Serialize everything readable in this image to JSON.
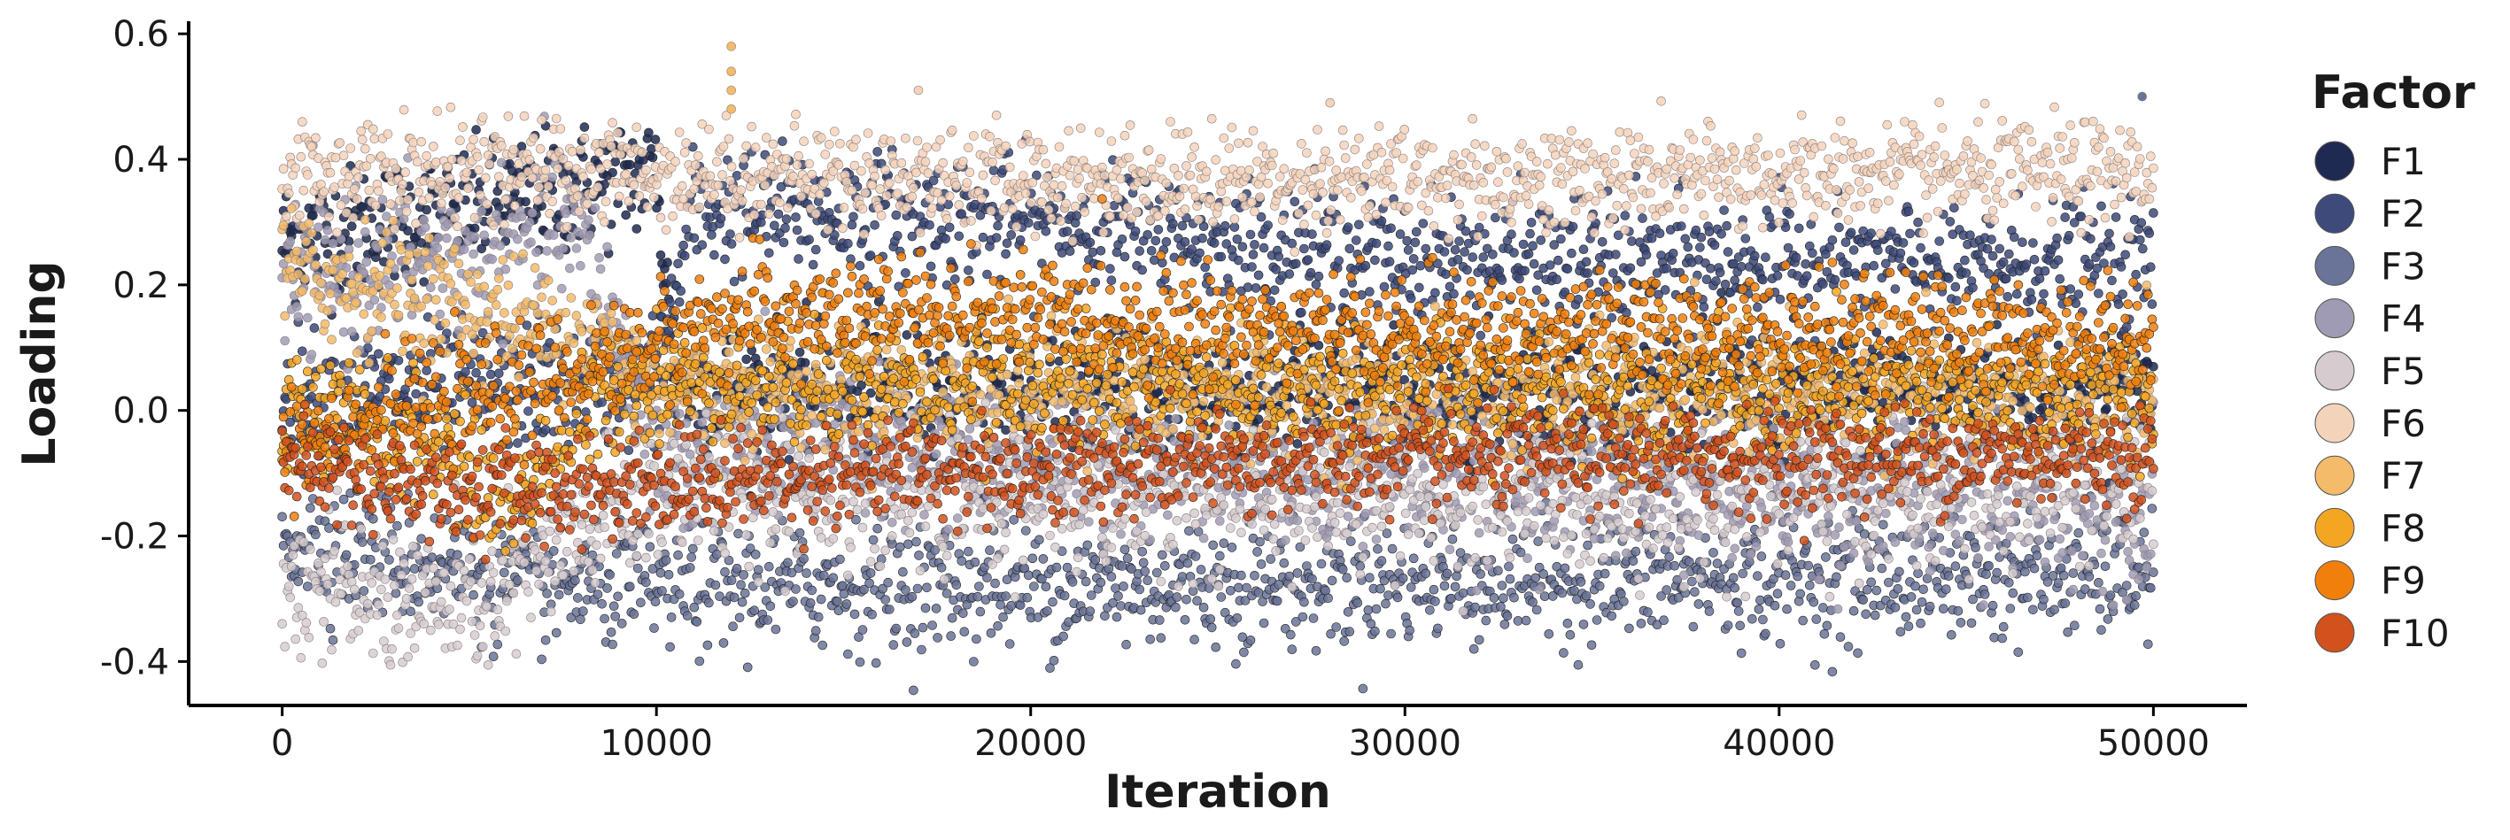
{
  "chart_data": {
    "type": "scatter",
    "title": "",
    "xlabel": "Iteration",
    "ylabel": "Loading",
    "xlim": [
      -2500,
      52500
    ],
    "ylim": [
      -0.47,
      0.62
    ],
    "x_ticks": [
      0,
      10000,
      20000,
      30000,
      40000,
      50000
    ],
    "x_tick_labels": [
      "0",
      "10000",
      "20000",
      "30000",
      "40000",
      "50000"
    ],
    "y_ticks": [
      -0.4,
      -0.2,
      0.0,
      0.2,
      0.4,
      0.6
    ],
    "y_tick_labels": [
      "-0.4",
      "-0.2",
      "0.0",
      "0.2",
      "0.4",
      "0.6"
    ],
    "grid": false,
    "legend_title": "Factor",
    "legend_position": "right",
    "x_range": [
      0,
      50000
    ],
    "series": [
      {
        "name": "F1",
        "color": "#1f2a52",
        "mean": [
          [
            0,
            0.27
          ],
          [
            5000,
            0.32
          ],
          [
            10000,
            0.38
          ],
          [
            10500,
            0.04
          ],
          [
            20000,
            0.03
          ],
          [
            30000,
            0.03
          ],
          [
            50000,
            0.03
          ]
        ],
        "spread": 0.05
      },
      {
        "name": "F2",
        "color": "#3d4a7a",
        "mean": [
          [
            0,
            0.02
          ],
          [
            10000,
            0.05
          ],
          [
            11000,
            0.32
          ],
          [
            20000,
            0.3
          ],
          [
            30000,
            0.24
          ],
          [
            50000,
            0.23
          ]
        ],
        "spread": 0.05
      },
      {
        "name": "F3",
        "color": "#6a7398",
        "mean": [
          [
            0,
            -0.2
          ],
          [
            7000,
            -0.28
          ],
          [
            20000,
            -0.28
          ],
          [
            35000,
            -0.27
          ],
          [
            50000,
            -0.26
          ]
        ],
        "spread": 0.05
      },
      {
        "name": "F4",
        "color": "#a09bb4",
        "mean": [
          [
            0,
            0.2
          ],
          [
            8000,
            0.28
          ],
          [
            10000,
            -0.05
          ],
          [
            30000,
            -0.1
          ],
          [
            50000,
            -0.15
          ]
        ],
        "spread": 0.06
      },
      {
        "name": "F5",
        "color": "#d6cccf",
        "mean": [
          [
            0,
            -0.27
          ],
          [
            5000,
            -0.32
          ],
          [
            10000,
            -0.12
          ],
          [
            30000,
            -0.14
          ],
          [
            50000,
            -0.12
          ]
        ],
        "spread": 0.06
      },
      {
        "name": "F6",
        "color": "#f4d3bb",
        "mean": [
          [
            0,
            0.38
          ],
          [
            10000,
            0.38
          ],
          [
            20000,
            0.37
          ],
          [
            35000,
            0.37
          ],
          [
            50000,
            0.38
          ]
        ],
        "spread": 0.04
      },
      {
        "name": "F7",
        "color": "#f3bb6a",
        "mean": [
          [
            0,
            0.22
          ],
          [
            4000,
            0.18
          ],
          [
            8000,
            0.12
          ],
          [
            10000,
            0.05
          ],
          [
            30000,
            0.03
          ],
          [
            50000,
            0.02
          ]
        ],
        "spread": 0.05
      },
      {
        "name": "F8",
        "color": "#f4a623",
        "mean": [
          [
            0,
            0.0
          ],
          [
            4000,
            -0.05
          ],
          [
            6000,
            -0.15
          ],
          [
            9000,
            0.05
          ],
          [
            30000,
            0.03
          ],
          [
            50000,
            0.02
          ]
        ],
        "spread": 0.05
      },
      {
        "name": "F9",
        "color": "#f07f0c",
        "mean": [
          [
            0,
            -0.05
          ],
          [
            8000,
            0.06
          ],
          [
            12000,
            0.15
          ],
          [
            20000,
            0.15
          ],
          [
            30000,
            0.12
          ],
          [
            50000,
            0.12
          ]
        ],
        "spread": 0.045
      },
      {
        "name": "F10",
        "color": "#d2511d",
        "mean": [
          [
            0,
            -0.08
          ],
          [
            5000,
            -0.13
          ],
          [
            15000,
            -0.1
          ],
          [
            30000,
            -0.08
          ],
          [
            50000,
            -0.07
          ]
        ],
        "spread": 0.04
      }
    ],
    "outliers": [
      {
        "series": "F7",
        "x": 12000,
        "y": 0.58
      },
      {
        "series": "F7",
        "x": 12000,
        "y": 0.54
      },
      {
        "series": "F7",
        "x": 12000,
        "y": 0.51
      },
      {
        "series": "F7",
        "x": 12000,
        "y": 0.48
      },
      {
        "series": "F6",
        "x": 17000,
        "y": 0.51
      },
      {
        "series": "F6",
        "x": 28000,
        "y": 0.49
      },
      {
        "series": "F3",
        "x": 49700,
        "y": 0.5
      }
    ]
  }
}
